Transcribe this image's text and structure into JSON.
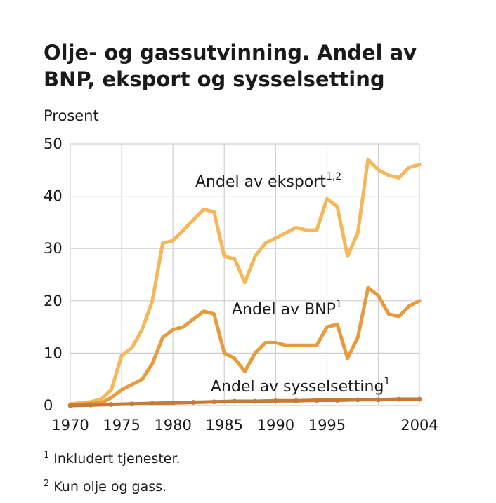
{
  "chart_data": {
    "type": "line",
    "title_lines": [
      "Olje- og gassutvinning. Andel av",
      "BNP, eksport og sysselsetting"
    ],
    "ylabel": "Prosent",
    "xlim": [
      1970,
      2004
    ],
    "ylim": [
      0,
      50
    ],
    "x_ticks": [
      "1970",
      "1975",
      "1980",
      "1985",
      "1990",
      "1995",
      "2004"
    ],
    "y_ticks": [
      "0",
      "10",
      "20",
      "30",
      "40",
      "50"
    ],
    "grid": true,
    "series": [
      {
        "name": "Andel av eksport",
        "label_sup": "1,2",
        "color": "#f6b75a",
        "x": [
          1970,
          1971,
          1972,
          1973,
          1974,
          1975,
          1976,
          1977,
          1978,
          1979,
          1980,
          1981,
          1982,
          1983,
          1984,
          1985,
          1986,
          1987,
          1988,
          1989,
          1990,
          1991,
          1992,
          1993,
          1994,
          1995,
          1996,
          1997,
          1998,
          1999,
          2000,
          2001,
          2002,
          2003,
          2004
        ],
        "values": [
          0.3,
          0.5,
          0.7,
          1.2,
          3.0,
          9.5,
          11.0,
          14.5,
          20.0,
          31.0,
          31.5,
          33.5,
          35.5,
          37.5,
          37.0,
          28.5,
          28.0,
          23.5,
          28.5,
          31.0,
          32.0,
          33.0,
          34.0,
          33.5,
          33.5,
          39.5,
          38.0,
          28.5,
          33.0,
          47.0,
          45.0,
          44.0,
          43.5,
          45.5,
          46.0
        ]
      },
      {
        "name": "Andel av BNP",
        "label_sup": "1",
        "color": "#e89a3c",
        "x": [
          1970,
          1971,
          1972,
          1973,
          1974,
          1975,
          1976,
          1977,
          1978,
          1979,
          1980,
          1981,
          1982,
          1983,
          1984,
          1985,
          1986,
          1987,
          1988,
          1989,
          1990,
          1991,
          1992,
          1993,
          1994,
          1995,
          1996,
          1997,
          1998,
          1999,
          2000,
          2001,
          2002,
          2003,
          2004
        ],
        "values": [
          0.0,
          0.2,
          0.4,
          0.5,
          1.5,
          3.0,
          4.0,
          5.0,
          8.0,
          13.0,
          14.5,
          15.0,
          16.5,
          18.0,
          17.5,
          10.0,
          9.0,
          6.5,
          10.0,
          12.0,
          12.0,
          11.5,
          11.5,
          11.5,
          11.5,
          15.0,
          15.5,
          9.0,
          13.0,
          22.5,
          21.0,
          17.5,
          17.0,
          19.0,
          20.0
        ]
      },
      {
        "name": "Andel av sysselsetting",
        "label_sup": "1",
        "color": "#c67a35",
        "x": [
          1970,
          1972,
          1974,
          1976,
          1978,
          1980,
          1982,
          1984,
          1986,
          1988,
          1990,
          1992,
          1994,
          1996,
          1998,
          2000,
          2002,
          2004
        ],
        "values": [
          0.0,
          0.1,
          0.2,
          0.3,
          0.4,
          0.5,
          0.6,
          0.7,
          0.8,
          0.8,
          0.9,
          0.9,
          1.0,
          1.0,
          1.1,
          1.1,
          1.2,
          1.2
        ]
      }
    ]
  },
  "footnotes": [
    {
      "mark": "1",
      "text": "Inkludert tjenester."
    },
    {
      "mark": "2",
      "text": "Kun olje og gass."
    }
  ]
}
